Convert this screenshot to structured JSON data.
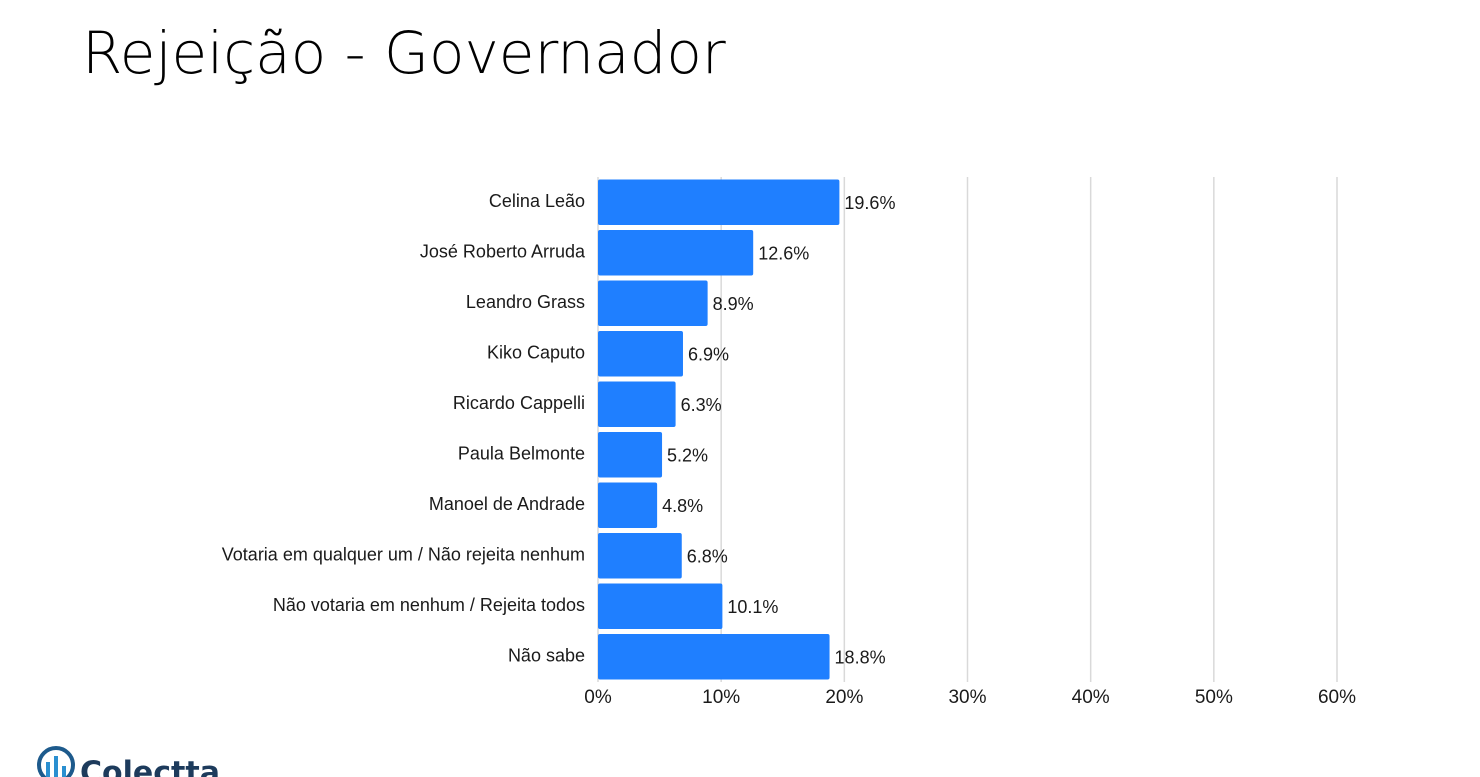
{
  "chart_data": {
    "type": "bar",
    "orientation": "horizontal",
    "title": "Rejeição - Governador",
    "categories": [
      "Celina Leão",
      "José Roberto Arruda",
      "Leandro Grass",
      "Kiko Caputo",
      "Ricardo Cappelli",
      "Paula Belmonte",
      "Manoel de Andrade",
      "Votaria em qualquer um / Não rejeita nenhum",
      "Não votaria em nenhum / Rejeita todos",
      "Não sabe"
    ],
    "values": [
      19.6,
      12.6,
      8.9,
      6.9,
      6.3,
      5.2,
      4.8,
      6.8,
      10.1,
      18.8
    ],
    "value_labels": [
      "19.6%",
      "12.6%",
      "8.9%",
      "6.9%",
      "6.3%",
      "5.2%",
      "4.8%",
      "6.8%",
      "10.1%",
      "18.8%"
    ],
    "color": "#1f7fff",
    "xlim": [
      0,
      60
    ],
    "xticks": [
      {
        "value": 0,
        "label": "0%"
      },
      {
        "value": 10,
        "label": "10%"
      },
      {
        "value": 20,
        "label": "20%"
      },
      {
        "value": 30,
        "label": "30%"
      },
      {
        "value": 40,
        "label": "40%"
      },
      {
        "value": 50,
        "label": "50%"
      },
      {
        "value": 60,
        "label": "60%"
      }
    ],
    "grid": true
  },
  "logo": "Colectta"
}
